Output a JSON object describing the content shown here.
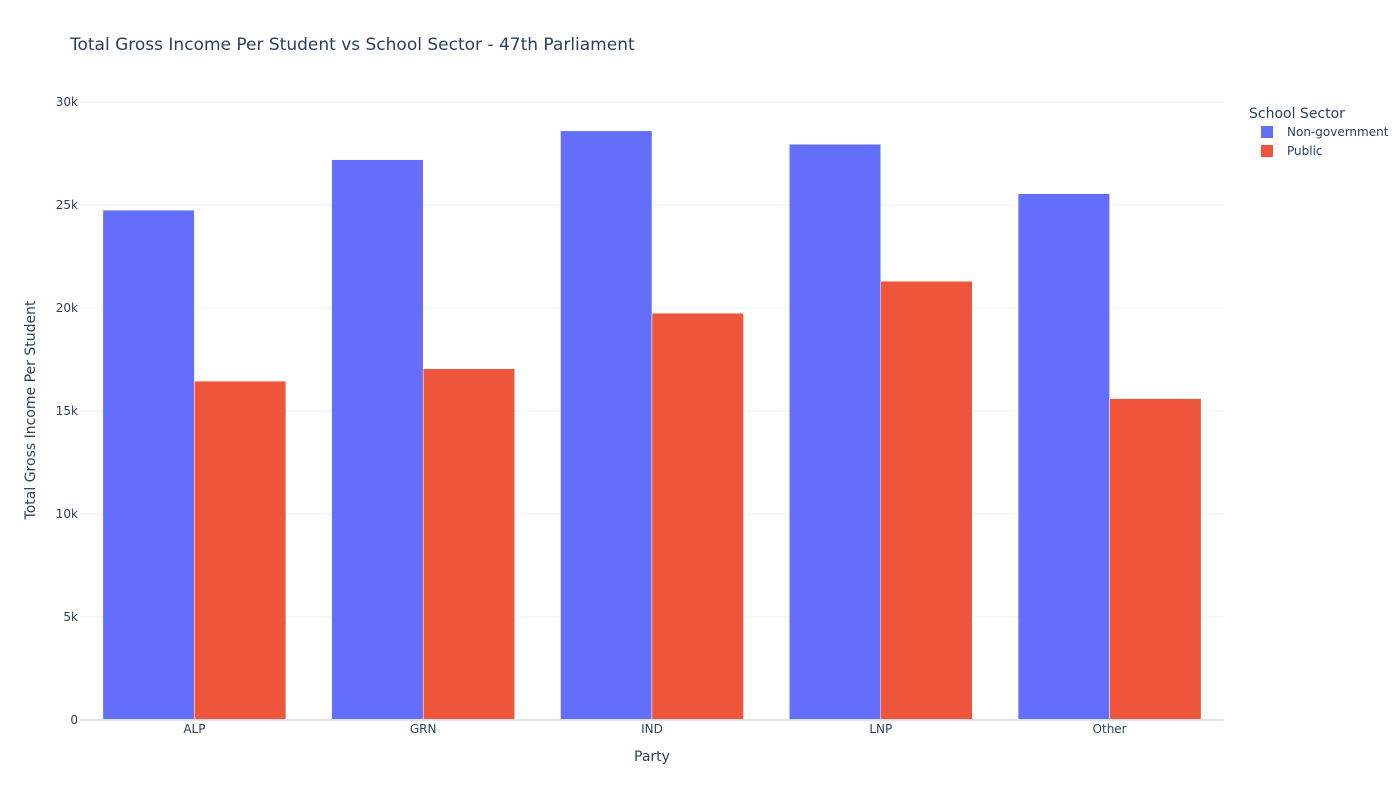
{
  "chart_data": {
    "type": "bar",
    "title": "Total Gross Income Per Student vs School Sector - 47th Parliament",
    "xlabel": "Party",
    "ylabel": "Total Gross Income Per Student",
    "categories": [
      "ALP",
      "GRN",
      "IND",
      "LNP",
      "Other"
    ],
    "series": [
      {
        "name": "Non-government",
        "color": "#636efa",
        "values": [
          24750,
          27200,
          28600,
          27950,
          25550
        ]
      },
      {
        "name": "Public",
        "color": "#ef553b",
        "values": [
          16450,
          17050,
          19750,
          21300,
          15600
        ]
      }
    ],
    "ylim": [
      0,
      30000
    ],
    "yticks": [
      0,
      5000,
      10000,
      15000,
      20000,
      25000,
      30000
    ],
    "ytick_labels": [
      "0",
      "5k",
      "10k",
      "15k",
      "20k",
      "25k",
      "30k"
    ],
    "legend": {
      "title": "School Sector",
      "placement": "top-right"
    },
    "grid": true
  }
}
